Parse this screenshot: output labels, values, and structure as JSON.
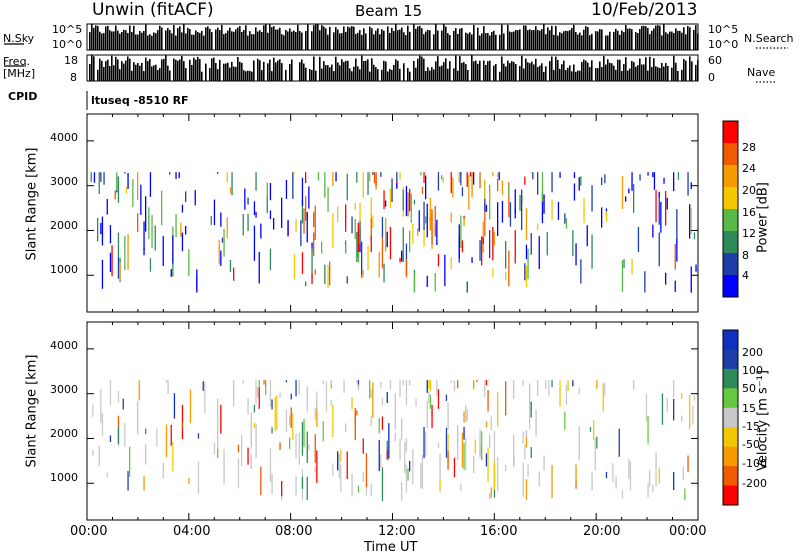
{
  "header": {
    "radar": "Unwin (fitACF)",
    "beam": "Beam 15",
    "date": "10/Feb/2013"
  },
  "status_panels": {
    "nsky_label": "N.Sky",
    "nsky_ticks": [
      "10^5",
      "10^0"
    ],
    "nsearch_label": "N.Search",
    "nsearch_ticks": [
      "10^5",
      "10^0"
    ],
    "freq_label_line1": "Freq.",
    "freq_label_line2": "[MHz]",
    "freq_ticks": [
      "18",
      "8"
    ],
    "nave_label": "Nave",
    "nave_ticks": [
      "60",
      "0"
    ],
    "cpid_label": "CPID",
    "cpid_value": "ltuseq -8510 RF"
  },
  "chart_data": [
    {
      "type": "heatmap",
      "parameter": "power",
      "ylabel": "Slant Range [km]",
      "yticks": [
        "1000",
        "2000",
        "3000",
        "4000"
      ],
      "ylim": [
        180,
        4600
      ],
      "xlim": [
        0,
        24
      ],
      "colorbar_label": "Power [dB]",
      "colorbar_ticks": [
        "4",
        "8",
        "12",
        "16",
        "20",
        "24",
        "28"
      ],
      "colorbar_range": [
        0,
        30
      ],
      "colors": [
        "#0000ff",
        "#1f3fa8",
        "#2f8a5a",
        "#59b84a",
        "#f2c800",
        "#f59a00",
        "#f05a00",
        "#ff0000"
      ]
    },
    {
      "type": "heatmap",
      "parameter": "velocity",
      "ylabel": "Slant Range [km]",
      "yticks": [
        "1000",
        "2000",
        "3000",
        "4000"
      ],
      "ylim": [
        180,
        4600
      ],
      "xlim": [
        0,
        24
      ],
      "colorbar_label": "Velocity [m s⁻¹]",
      "colorbar_ticks": [
        "200",
        "100",
        "50",
        "15",
        "-15",
        "-50",
        "-100",
        "-200"
      ],
      "colors": [
        "#1030c0",
        "#1f3fa8",
        "#2f8a5a",
        "#66c840",
        "#c8c8c8",
        "#f2c800",
        "#f59a00",
        "#f05a00",
        "#ff0000"
      ]
    }
  ],
  "xaxis": {
    "xlabel": "Time UT",
    "ticks": [
      "00:00",
      "04:00",
      "08:00",
      "12:00",
      "16:00",
      "20:00",
      "00:00"
    ]
  }
}
